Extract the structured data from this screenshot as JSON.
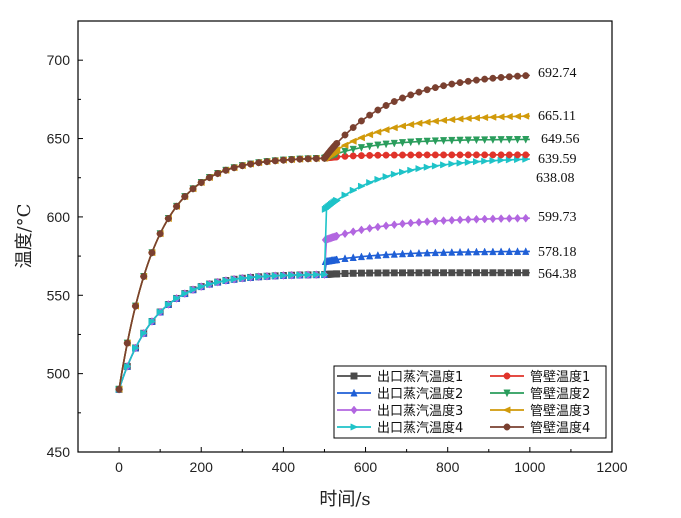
{
  "chart_data": {
    "type": "line",
    "title": "",
    "xlabel": "时间/s",
    "ylabel": "温度/°C",
    "xlim": [
      -100,
      1200
    ],
    "ylim": [
      450,
      725
    ],
    "xticks": [
      0,
      200,
      400,
      600,
      800,
      1000,
      1200
    ],
    "yticks": [
      450,
      500,
      550,
      600,
      650,
      700
    ],
    "xtick_labels": [
      "0",
      "200",
      "400",
      "600",
      "800",
      "1000",
      "1200"
    ],
    "ytick_labels": [
      "450",
      "500",
      "550",
      "600",
      "650",
      "700"
    ],
    "grid": false,
    "legend_position": "bottom-right",
    "model": {
      "start": 490,
      "tau1": 90,
      "tau2": 90,
      "switch": 500,
      "outlet_stage1": 563.5,
      "wall_stage1": 638.0
    },
    "series": [
      {
        "name": "出口蒸汽温度1",
        "color": "#4a4a4a",
        "marker": "square",
        "final": 564.38,
        "end_label": "564.38",
        "group": "outlet",
        "jump": 0.0,
        "tau": 60
      },
      {
        "name": "出口蒸汽温度2",
        "color": "#1f5fd6",
        "marker": "triangle-up",
        "final": 578.18,
        "end_label": "578.18",
        "group": "outlet",
        "jump": 0.55,
        "tau": 140
      },
      {
        "name": "出口蒸汽温度3",
        "color": "#b266e0",
        "marker": "diamond",
        "final": 599.73,
        "end_label": "599.73",
        "group": "outlet",
        "jump": 0.6,
        "tau": 150
      },
      {
        "name": "出口蒸汽温度4",
        "color": "#1ec3c8",
        "marker": "triangle-right",
        "final": 638.08,
        "end_label": "638.08",
        "group": "outlet",
        "jump": 0.55,
        "tau": 150
      },
      {
        "name": "管壁温度1",
        "color": "#e0332a",
        "marker": "circle",
        "final": 639.59,
        "end_label": "639.59",
        "group": "wall",
        "jump": 0.0,
        "tau": 60
      },
      {
        "name": "管壁温度2",
        "color": "#2a9d5c",
        "marker": "triangle-down",
        "final": 649.56,
        "end_label": "649.56",
        "group": "wall",
        "jump": 0.0,
        "tau": 110
      },
      {
        "name": "管壁温度3",
        "color": "#d19a0a",
        "marker": "triangle-left",
        "final": 665.11,
        "end_label": "665.11",
        "group": "wall",
        "jump": 0.0,
        "tau": 140
      },
      {
        "name": "管壁温度4",
        "color": "#7a4030",
        "marker": "hexagon",
        "final": 692.74,
        "end_label": "692.74",
        "group": "wall",
        "jump": 0.0,
        "tau": 160
      }
    ]
  }
}
